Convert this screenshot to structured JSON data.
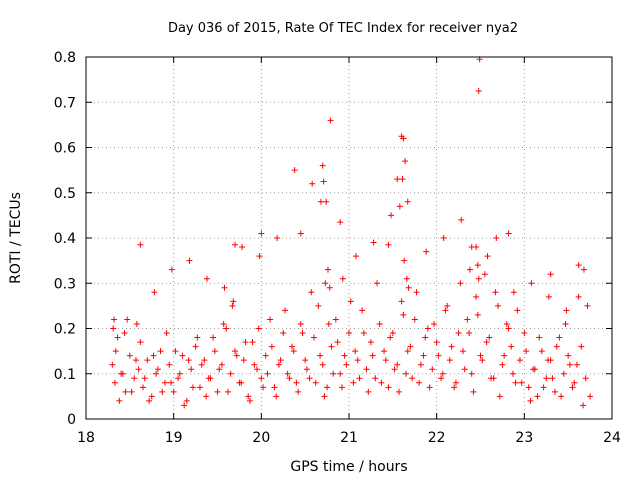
{
  "chart_data": {
    "type": "scatter",
    "title": "Day 036 of 2015, Rate Of TEC Index for receiver nya2",
    "xlabel": "GPS time / hours",
    "ylabel": "ROTI / TECUs",
    "xlim": [
      18,
      24
    ],
    "ylim": [
      0,
      0.8
    ],
    "x_ticks": [
      18,
      19,
      20,
      21,
      22,
      23,
      24
    ],
    "x_tick_labels": [
      "18",
      "19",
      "20",
      "21",
      "22",
      "23",
      "24"
    ],
    "y_ticks": [
      0,
      0.1,
      0.2,
      0.3,
      0.4,
      0.5,
      0.6,
      0.7,
      0.8
    ],
    "y_tick_labels": [
      "0",
      "0.1",
      "0.2",
      "0.3",
      "0.4",
      "0.5",
      "0.6",
      "0.7",
      "0.8"
    ],
    "grid": true,
    "marker": "+",
    "marker_color": "#ff0000",
    "series": [
      {
        "name": "ROTI",
        "x": [
          18.3,
          18.33,
          18.36,
          18.4,
          18.45,
          18.5,
          18.55,
          18.6,
          18.65,
          18.7,
          18.75,
          18.8,
          18.85,
          18.9,
          18.95,
          19.0,
          19.05,
          19.1,
          19.15,
          19.2,
          19.25,
          19.3,
          19.35,
          19.4,
          19.45,
          19.5,
          19.55,
          19.6,
          19.65,
          19.7,
          19.75,
          19.8,
          19.85,
          19.9,
          19.95,
          20.0,
          20.05,
          20.1,
          20.15,
          20.2,
          20.25,
          20.3,
          20.35,
          20.4,
          20.45,
          20.5,
          20.55,
          20.6,
          20.65,
          20.7,
          20.75,
          20.8,
          20.85,
          20.9,
          20.95,
          21.0,
          21.05,
          21.1,
          21.15,
          21.2,
          21.25,
          21.3,
          21.35,
          21.4,
          21.45,
          21.5,
          21.55,
          21.6,
          21.65,
          21.7,
          21.75,
          21.8,
          21.85,
          21.9,
          21.95,
          22.0,
          22.05,
          22.1,
          22.15,
          22.2,
          22.25,
          22.3,
          22.35,
          22.4,
          22.45,
          22.5,
          22.55,
          22.6,
          22.65,
          22.7,
          22.75,
          22.8,
          22.85,
          22.9,
          22.95,
          23.0,
          23.05,
          23.1,
          23.15,
          23.2,
          23.25,
          23.3,
          23.35,
          23.4,
          23.45,
          23.5,
          23.55,
          23.6,
          23.65,
          23.7,
          23.75,
          18.31,
          18.34,
          18.38,
          18.42,
          18.47,
          18.52,
          18.57,
          18.62,
          18.67,
          18.72,
          18.77,
          18.82,
          18.87,
          18.92,
          18.97,
          19.02,
          19.07,
          19.12,
          19.17,
          19.22,
          19.27,
          19.32,
          19.37,
          19.42,
          19.47,
          19.52,
          19.57,
          19.62,
          19.67,
          19.72,
          19.77,
          19.82,
          19.87,
          19.92,
          19.97,
          20.02,
          20.07,
          20.12,
          20.17,
          20.22,
          20.27,
          20.32,
          20.37,
          20.42,
          20.47,
          20.52,
          20.57,
          20.62,
          20.67,
          20.72,
          20.77,
          20.82,
          20.87,
          20.92,
          20.97,
          21.02,
          21.07,
          21.12,
          21.17,
          21.22,
          21.27,
          21.32,
          21.37,
          21.42,
          21.47,
          21.52,
          21.57,
          21.62,
          21.67,
          21.72,
          21.77,
          21.82,
          21.87,
          21.92,
          21.97,
          22.02,
          22.07,
          22.12,
          22.17,
          22.22,
          22.27,
          22.32,
          22.37,
          22.42,
          22.47,
          22.52,
          22.57,
          22.62,
          22.67,
          22.72,
          22.77,
          22.82,
          22.87,
          22.92,
          22.97,
          23.02,
          23.07,
          23.12,
          23.17,
          23.22,
          23.27,
          23.32,
          23.37,
          23.42,
          23.47,
          23.52,
          23.57,
          23.62,
          23.67,
          23.72,
          18.32,
          18.44,
          18.58,
          18.78,
          18.98,
          19.18,
          19.38,
          19.58,
          19.68,
          19.78,
          19.98,
          20.18,
          20.38,
          20.58,
          20.68,
          20.73,
          20.76,
          20.78,
          20.93,
          21.08,
          21.28,
          21.48,
          21.58,
          21.61,
          21.63,
          21.66,
          21.68,
          21.88,
          22.08,
          22.28,
          22.38,
          22.45,
          22.47,
          22.48,
          22.58,
          22.68,
          22.88,
          23.08,
          23.28,
          23.48,
          23.68,
          18.62,
          19.7,
          20.0,
          20.45,
          20.7,
          20.71,
          20.74,
          20.79,
          20.9,
          21.45,
          21.55,
          21.6,
          21.62,
          21.64,
          21.67,
          22.4,
          22.48,
          22.49,
          22.82,
          23.3,
          23.62
        ],
        "y": [
          0.12,
          0.08,
          0.18,
          0.1,
          0.06,
          0.14,
          0.09,
          0.11,
          0.07,
          0.13,
          0.05,
          0.1,
          0.15,
          0.08,
          0.12,
          0.06,
          0.09,
          0.14,
          0.04,
          0.11,
          0.16,
          0.07,
          0.13,
          0.09,
          0.18,
          0.06,
          0.12,
          0.2,
          0.1,
          0.15,
          0.08,
          0.13,
          0.05,
          0.17,
          0.11,
          0.09,
          0.14,
          0.22,
          0.07,
          0.12,
          0.19,
          0.1,
          0.16,
          0.08,
          0.21,
          0.13,
          0.09,
          0.18,
          0.25,
          0.12,
          0.07,
          0.16,
          0.22,
          0.1,
          0.14,
          0.19,
          0.08,
          0.13,
          0.24,
          0.11,
          0.17,
          0.09,
          0.21,
          0.15,
          0.07,
          0.19,
          0.12,
          0.26,
          0.1,
          0.16,
          0.22,
          0.08,
          0.14,
          0.2,
          0.11,
          0.17,
          0.09,
          0.24,
          0.13,
          0.07,
          0.19,
          0.15,
          0.22,
          0.1,
          0.27,
          0.14,
          0.32,
          0.18,
          0.09,
          0.25,
          0.12,
          0.21,
          0.16,
          0.08,
          0.13,
          0.19,
          0.07,
          0.11,
          0.05,
          0.15,
          0.09,
          0.13,
          0.06,
          0.18,
          0.1,
          0.14,
          0.07,
          0.12,
          0.16,
          0.09,
          0.05,
          0.2,
          0.15,
          0.04,
          0.1,
          0.22,
          0.06,
          0.13,
          0.17,
          0.09,
          0.04,
          0.14,
          0.11,
          0.06,
          0.19,
          0.08,
          0.15,
          0.1,
          0.03,
          0.13,
          0.07,
          0.18,
          0.12,
          0.05,
          0.09,
          0.15,
          0.11,
          0.21,
          0.06,
          0.25,
          0.14,
          0.08,
          0.17,
          0.04,
          0.12,
          0.2,
          0.07,
          0.1,
          0.16,
          0.05,
          0.13,
          0.24,
          0.09,
          0.15,
          0.06,
          0.19,
          0.11,
          0.28,
          0.08,
          0.14,
          0.05,
          0.21,
          0.1,
          0.17,
          0.07,
          0.12,
          0.26,
          0.15,
          0.09,
          0.19,
          0.06,
          0.14,
          0.3,
          0.08,
          0.13,
          0.18,
          0.11,
          0.06,
          0.23,
          0.15,
          0.09,
          0.28,
          0.12,
          0.18,
          0.07,
          0.21,
          0.14,
          0.1,
          0.25,
          0.16,
          0.08,
          0.3,
          0.11,
          0.19,
          0.06,
          0.23,
          0.13,
          0.17,
          0.09,
          0.28,
          0.05,
          0.14,
          0.2,
          0.1,
          0.24,
          0.08,
          0.15,
          0.04,
          0.11,
          0.18,
          0.07,
          0.13,
          0.09,
          0.16,
          0.05,
          0.21,
          0.12,
          0.08,
          0.27,
          0.03,
          0.25,
          0.22,
          0.19,
          0.21,
          0.28,
          0.33,
          0.35,
          0.31,
          0.29,
          0.26,
          0.38,
          0.36,
          0.4,
          0.55,
          0.52,
          0.48,
          0.3,
          0.33,
          0.29,
          0.31,
          0.36,
          0.39,
          0.45,
          0.47,
          0.53,
          0.35,
          0.31,
          0.29,
          0.37,
          0.4,
          0.44,
          0.33,
          0.38,
          0.34,
          0.31,
          0.36,
          0.4,
          0.28,
          0.3,
          0.27,
          0.24,
          0.33,
          0.385,
          0.385,
          0.41,
          0.41,
          0.56,
          0.525,
          0.48,
          0.66,
          0.435,
          0.385,
          0.53,
          0.625,
          0.62,
          0.57,
          0.48,
          0.38,
          0.725,
          0.795,
          0.41,
          0.32,
          0.34
        ],
        "color": "#ff0000"
      }
    ]
  }
}
